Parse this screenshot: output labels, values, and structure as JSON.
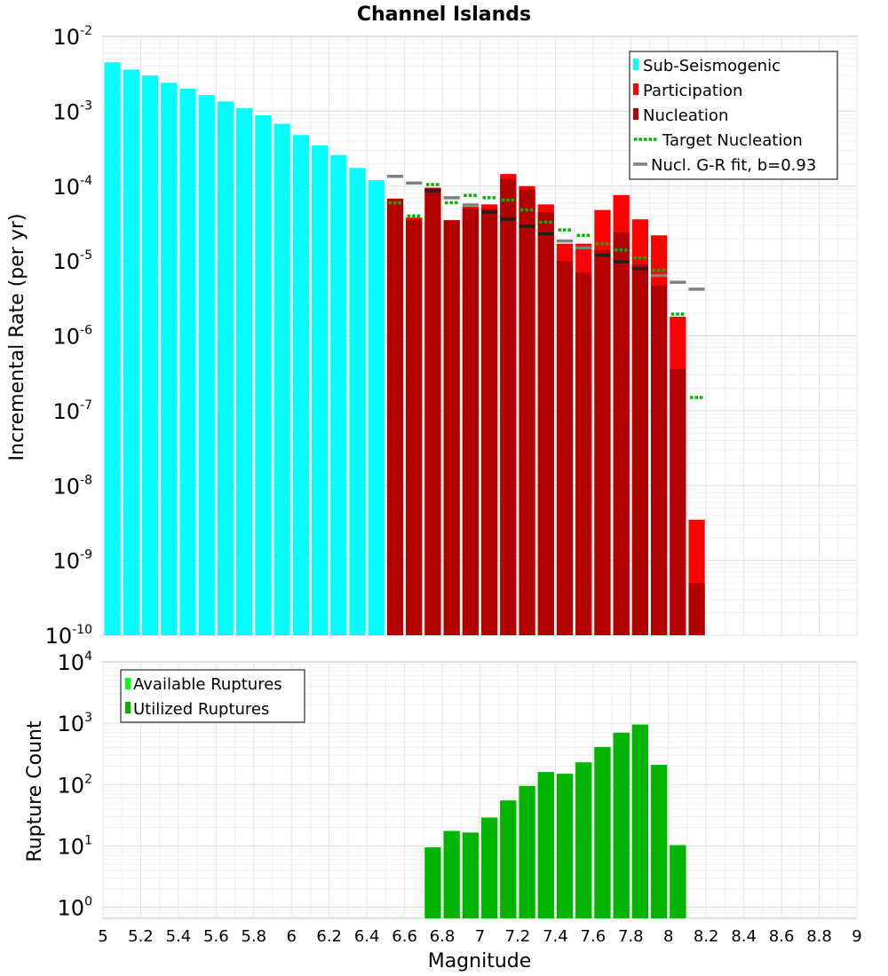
{
  "chart_data": [
    {
      "type": "bar",
      "title": "Channel Islands",
      "xlabel": "Magnitude",
      "ylabel": "Incremental Rate (per yr)",
      "yscale": "log",
      "xlim": [
        5,
        9
      ],
      "ylim_exp": [
        -10,
        -2
      ],
      "y_ticks": [
        {
          "base": "10",
          "exp": "-10"
        },
        {
          "base": "10",
          "exp": "-9"
        },
        {
          "base": "10",
          "exp": "-8"
        },
        {
          "base": "10",
          "exp": "-7"
        },
        {
          "base": "10",
          "exp": "-6"
        },
        {
          "base": "10",
          "exp": "-5"
        },
        {
          "base": "10",
          "exp": "-4"
        },
        {
          "base": "10",
          "exp": "-3"
        },
        {
          "base": "10",
          "exp": "-2"
        }
      ],
      "bin_width": 0.1,
      "colors": {
        "sub_seismogenic": "#00ffff",
        "participation": "#ff0000",
        "nucleation": "#b20000",
        "target_nucleation": "#00b400",
        "gr_fit": "#808080",
        "gr_fit_overlap": "#202020"
      },
      "series": [
        {
          "name": "Sub-Seismogenic",
          "x": [
            5.05,
            5.15,
            5.25,
            5.35,
            5.45,
            5.55,
            5.65,
            5.75,
            5.85,
            5.95,
            6.05,
            6.15,
            6.25,
            6.35,
            6.45
          ],
          "values": [
            0.0045,
            0.0036,
            0.003,
            0.0024,
            0.002,
            0.00165,
            0.00135,
            0.0011,
            0.00088,
            0.00068,
            0.00048,
            0.00035,
            0.00026,
            0.000175,
            0.00012
          ]
        },
        {
          "name": "Participation",
          "x": [
            6.55,
            6.65,
            6.75,
            6.85,
            6.95,
            7.05,
            7.15,
            7.25,
            7.35,
            7.45,
            7.55,
            7.65,
            7.75,
            7.85,
            7.95,
            8.05,
            8.15
          ],
          "values": [
            6.8e-05,
            3.8e-05,
            9.5e-05,
            3.5e-05,
            5.3e-05,
            5.7e-05,
            0.000145,
            0.0001,
            5.7e-05,
            1.7e-05,
            1.7e-05,
            4.8e-05,
            7.6e-05,
            3.6e-05,
            2.2e-05,
            1.8e-06,
            3.5e-09
          ]
        },
        {
          "name": "Nucleation",
          "x": [
            6.55,
            6.65,
            6.75,
            6.85,
            6.95,
            7.05,
            7.15,
            7.25,
            7.35,
            7.45,
            7.55,
            7.65,
            7.75,
            7.85,
            7.95,
            8.05,
            8.15
          ],
          "values": [
            6.8e-05,
            3.5e-05,
            9.5e-05,
            3.5e-05,
            5e-05,
            5e-05,
            0.000125,
            9e-05,
            4.5e-05,
            1e-05,
            7e-06,
            1.4e-05,
            2.4e-05,
            9e-06,
            4.7e-06,
            3.6e-07,
            5e-10
          ]
        },
        {
          "name": "Target Nucleation",
          "x": [
            6.55,
            6.65,
            6.75,
            6.85,
            6.95,
            7.05,
            7.15,
            7.25,
            7.35,
            7.45,
            7.55,
            7.65,
            7.75,
            7.85,
            7.95,
            8.05,
            8.15
          ],
          "values": [
            6e-05,
            4e-05,
            0.000105,
            6e-05,
            7.5e-05,
            7e-05,
            6.5e-05,
            4.8e-05,
            3.3e-05,
            2.6e-05,
            2.2e-05,
            1.7e-05,
            1.4e-05,
            1.1e-05,
            7.5e-06,
            1.95e-06,
            1.5e-07
          ]
        },
        {
          "name": "Nucl. G-R fit, b=0.93",
          "x": [
            6.55,
            6.65,
            6.75,
            6.85,
            6.95,
            7.05,
            7.15,
            7.25,
            7.35,
            7.45,
            7.55,
            7.65,
            7.75,
            7.85,
            7.95,
            8.05,
            8.15
          ],
          "values": [
            0.000135,
            0.00011,
            8.7e-05,
            7e-05,
            5.6e-05,
            4.5e-05,
            3.6e-05,
            2.9e-05,
            2.3e-05,
            1.85e-05,
            1.5e-05,
            1.2e-05,
            9.8e-06,
            7.9e-06,
            6.4e-06,
            5.2e-06,
            4.2e-06
          ]
        }
      ],
      "legend": {
        "position": "top-right",
        "entries": [
          "Sub-Seismogenic",
          "Participation",
          "Nucleation",
          "Target Nucleation",
          "Nucl. G-R fit, b=0.93"
        ]
      }
    },
    {
      "type": "bar",
      "title": "",
      "xlabel": "Magnitude",
      "ylabel": "Rupture Count",
      "yscale": "log",
      "xlim": [
        5,
        9
      ],
      "ylim_exp": [
        -0.18,
        4
      ],
      "y_ticks": [
        {
          "base": "10",
          "exp": "0"
        },
        {
          "base": "10",
          "exp": "1"
        },
        {
          "base": "10",
          "exp": "2"
        },
        {
          "base": "10",
          "exp": "3"
        },
        {
          "base": "10",
          "exp": "4"
        }
      ],
      "x_ticks": [
        "5",
        "5.2",
        "5.4",
        "5.6",
        "5.8",
        "6",
        "6.2",
        "6.4",
        "6.6",
        "6.8",
        "7",
        "7.2",
        "7.4",
        "7.6",
        "7.8",
        "8",
        "8.2",
        "8.4",
        "8.6",
        "8.8",
        "9"
      ],
      "bin_width": 0.1,
      "colors": {
        "available": "#00ff00",
        "utilized": "#00b400"
      },
      "series": [
        {
          "name": "Available Ruptures",
          "x": [
            6.75,
            6.85,
            6.95,
            7.05,
            7.15,
            7.25,
            7.35,
            7.45,
            7.55,
            7.65,
            7.75,
            7.85,
            7.95,
            8.05
          ],
          "values": [
            9.5,
            17.5,
            16.5,
            29,
            55,
            95,
            160,
            150,
            230,
            410,
            700,
            950,
            210,
            10.3
          ]
        },
        {
          "name": "Utilized Ruptures",
          "x": [
            6.75,
            6.85,
            6.95,
            7.05,
            7.15,
            7.25,
            7.35,
            7.45,
            7.55,
            7.65,
            7.75,
            7.85,
            7.95,
            8.05
          ],
          "values": [
            9.5,
            17.5,
            16.5,
            29,
            55,
            95,
            160,
            150,
            230,
            410,
            700,
            950,
            210,
            10.3
          ]
        }
      ],
      "legend": {
        "position": "top-left",
        "entries": [
          "Available Ruptures",
          "Utilized Ruptures"
        ]
      }
    }
  ]
}
